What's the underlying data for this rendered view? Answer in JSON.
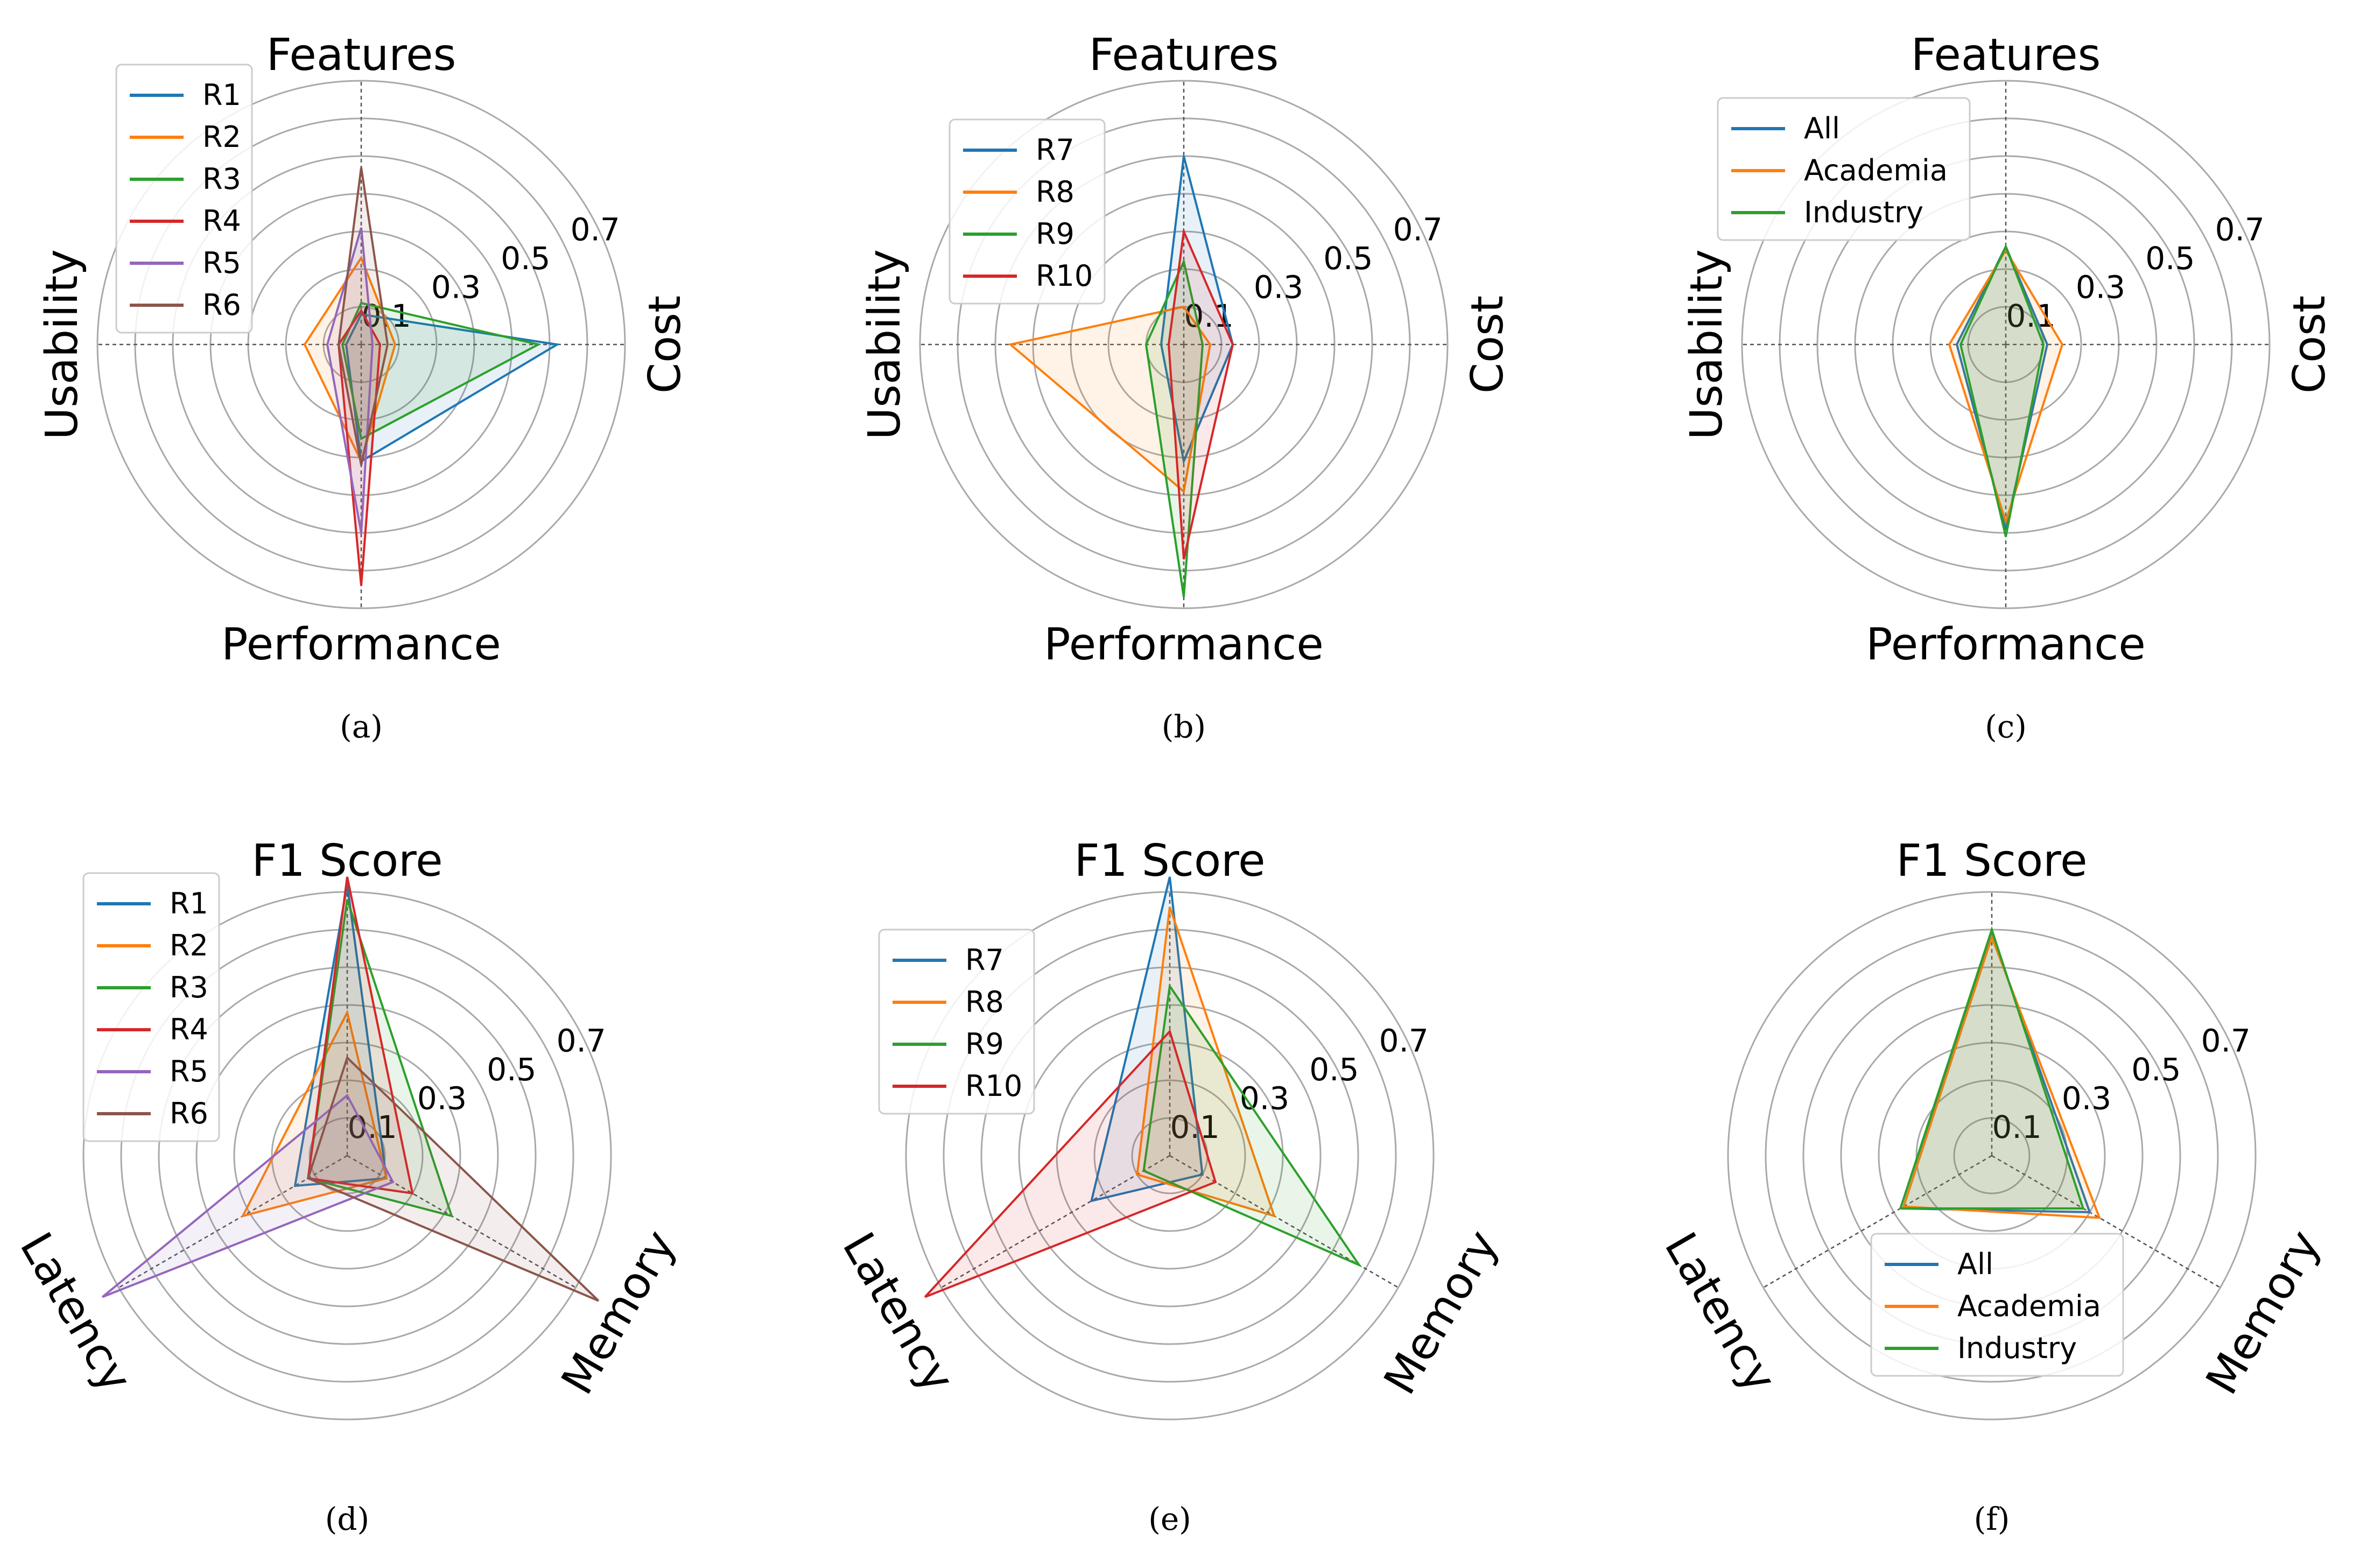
{
  "chart_data": [
    {
      "type": "radar",
      "panel_label": "(a)",
      "axes": [
        "Features",
        "Cost",
        "Performance",
        "Usability"
      ],
      "rings": [
        0.1,
        0.2,
        0.3,
        0.4,
        0.5,
        0.6,
        0.7
      ],
      "tick_labels": [
        "0.1",
        "0.3",
        "0.5",
        "0.7"
      ],
      "rlim": [
        0,
        0.75
      ],
      "legend_position": "top-left",
      "series": [
        {
          "name": "R1",
          "color": "#1f77b4",
          "values": [
            0.08,
            0.52,
            0.31,
            0.04
          ]
        },
        {
          "name": "R2",
          "color": "#ff7f0e",
          "values": [
            0.23,
            0.09,
            0.31,
            0.15
          ]
        },
        {
          "name": "R3",
          "color": "#2ca02c",
          "values": [
            0.11,
            0.47,
            0.25,
            0.05
          ]
        },
        {
          "name": "R4",
          "color": "#d62728",
          "values": [
            0.09,
            0.05,
            0.64,
            0.06
          ]
        },
        {
          "name": "R5",
          "color": "#9467bd",
          "values": [
            0.31,
            0.03,
            0.5,
            0.09
          ]
        },
        {
          "name": "R6",
          "color": "#8c564b",
          "values": [
            0.47,
            0.07,
            0.32,
            0.06
          ]
        }
      ]
    },
    {
      "type": "radar",
      "panel_label": "(b)",
      "axes": [
        "Features",
        "Cost",
        "Performance",
        "Usability"
      ],
      "rings": [
        0.1,
        0.2,
        0.3,
        0.4,
        0.5,
        0.6,
        0.7
      ],
      "tick_labels": [
        "0.1",
        "0.3",
        "0.5",
        "0.7"
      ],
      "rlim": [
        0,
        0.75
      ],
      "legend_position": "top-left",
      "series": [
        {
          "name": "R7",
          "color": "#1f77b4",
          "values": [
            0.5,
            0.13,
            0.31,
            0.06
          ]
        },
        {
          "name": "R8",
          "color": "#ff7f0e",
          "values": [
            0.1,
            0.07,
            0.39,
            0.46
          ]
        },
        {
          "name": "R9",
          "color": "#2ca02c",
          "values": [
            0.22,
            0.05,
            0.67,
            0.1
          ]
        },
        {
          "name": "R10",
          "color": "#d62728",
          "values": [
            0.3,
            0.13,
            0.57,
            0.04
          ]
        }
      ]
    },
    {
      "type": "radar",
      "panel_label": "(c)",
      "axes": [
        "Features",
        "Cost",
        "Performance",
        "Usability"
      ],
      "rings": [
        0.1,
        0.2,
        0.3,
        0.4,
        0.5,
        0.6,
        0.7
      ],
      "tick_labels": [
        "0.1",
        "0.3",
        "0.5",
        "0.7"
      ],
      "rlim": [
        0,
        0.75
      ],
      "legend_position": "top-left",
      "series": [
        {
          "name": "All",
          "color": "#1f77b4",
          "values": [
            0.26,
            0.11,
            0.49,
            0.13
          ]
        },
        {
          "name": "Academia",
          "color": "#ff7f0e",
          "values": [
            0.25,
            0.15,
            0.47,
            0.15
          ]
        },
        {
          "name": "Industry",
          "color": "#2ca02c",
          "values": [
            0.26,
            0.1,
            0.51,
            0.12
          ]
        }
      ]
    },
    {
      "type": "radar",
      "panel_label": "(d)",
      "axes": [
        "F1 Score",
        "Memory",
        "Latency"
      ],
      "rings": [
        0.1,
        0.2,
        0.3,
        0.4,
        0.5,
        0.6,
        0.7
      ],
      "tick_labels": [
        "0.1",
        "0.3",
        "0.5",
        "0.7"
      ],
      "rlim": [
        0,
        0.75
      ],
      "legend_position": "top-left",
      "series": [
        {
          "name": "R1",
          "color": "#1f77b4",
          "values": [
            0.72,
            0.12,
            0.16
          ]
        },
        {
          "name": "R2",
          "color": "#ff7f0e",
          "values": [
            0.38,
            0.12,
            0.32
          ]
        },
        {
          "name": "R3",
          "color": "#2ca02c",
          "values": [
            0.68,
            0.32,
            0.12
          ]
        },
        {
          "name": "R4",
          "color": "#d62728",
          "values": [
            0.74,
            0.2,
            0.12
          ]
        },
        {
          "name": "R5",
          "color": "#9467bd",
          "values": [
            0.16,
            0.14,
            0.75
          ]
        },
        {
          "name": "R6",
          "color": "#8c564b",
          "values": [
            0.26,
            0.77,
            0.12
          ]
        }
      ]
    },
    {
      "type": "radar",
      "panel_label": "(e)",
      "axes": [
        "F1 Score",
        "Memory",
        "Latency"
      ],
      "rings": [
        0.1,
        0.2,
        0.3,
        0.4,
        0.5,
        0.6,
        0.7
      ],
      "tick_labels": [
        "0.1",
        "0.3",
        "0.5",
        "0.7"
      ],
      "rlim": [
        0,
        0.75
      ],
      "legend_position": "top-left",
      "series": [
        {
          "name": "R7",
          "color": "#1f77b4",
          "values": [
            0.74,
            0.1,
            0.24
          ]
        },
        {
          "name": "R8",
          "color": "#ff7f0e",
          "values": [
            0.66,
            0.32,
            0.1
          ]
        },
        {
          "name": "R9",
          "color": "#2ca02c",
          "values": [
            0.45,
            0.58,
            0.08
          ]
        },
        {
          "name": "R10",
          "color": "#d62728",
          "values": [
            0.33,
            0.14,
            0.75
          ]
        }
      ]
    },
    {
      "type": "radar",
      "panel_label": "(f)",
      "axes": [
        "F1 Score",
        "Memory",
        "Latency"
      ],
      "rings": [
        0.1,
        0.2,
        0.3,
        0.4,
        0.5,
        0.6,
        0.7
      ],
      "tick_labels": [
        "0.1",
        "0.3",
        "0.5",
        "0.7"
      ],
      "rlim": [
        0,
        0.75
      ],
      "legend_position": "bottom-center",
      "series": [
        {
          "name": "All",
          "color": "#1f77b4",
          "values": [
            0.59,
            0.3,
            0.28
          ]
        },
        {
          "name": "Academia",
          "color": "#ff7f0e",
          "values": [
            0.58,
            0.33,
            0.27
          ]
        },
        {
          "name": "Industry",
          "color": "#2ca02c",
          "values": [
            0.6,
            0.28,
            0.28
          ]
        }
      ]
    }
  ]
}
